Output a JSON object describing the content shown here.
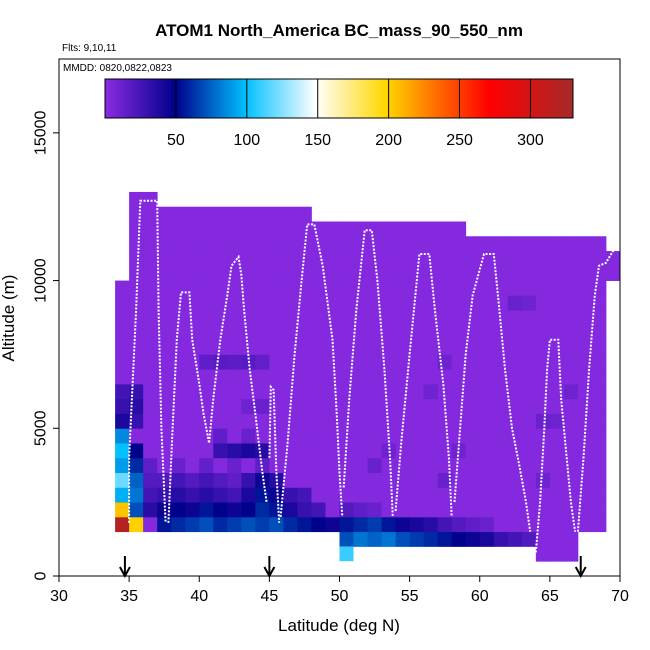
{
  "chart_data": {
    "type": "heatmap",
    "title": "ATOM1 North_America BC_mass_90_550_nm",
    "subtitle_flights": "Flts: 9,10,11",
    "subtitle_dates": "MMDD: 0820,0822,0823",
    "xlabel": "Latitude (deg N)",
    "ylabel": "Altitude (m)",
    "xlim": [
      30,
      70
    ],
    "ylim": [
      0,
      17500
    ],
    "x_ticks": [
      30,
      35,
      40,
      45,
      50,
      55,
      60,
      65,
      70
    ],
    "y_ticks": [
      0,
      5000,
      10000,
      15000
    ],
    "colorbar": {
      "range": [
        0,
        330
      ],
      "ticks": [
        50,
        100,
        150,
        200,
        250,
        300
      ],
      "colors": [
        "#8A2BE2",
        "#00008B",
        "#00BFFF",
        "#FFFFFF",
        "#FFD700",
        "#FF0000",
        "#A52A2A"
      ]
    },
    "grid": {
      "lat_step": 1,
      "alt_step": 500,
      "default_value": 2
    },
    "columns": [
      {
        "lat": 34,
        "alt_top": 10000
      },
      {
        "lat": 35,
        "alt_top": 13000
      },
      {
        "lat": 36,
        "alt_top": 13000
      },
      {
        "lat": 37,
        "alt_top": 12500
      },
      {
        "lat": 38,
        "alt_top": 12500
      },
      {
        "lat": 39,
        "alt_top": 12500
      },
      {
        "lat": 40,
        "alt_top": 12500
      },
      {
        "lat": 41,
        "alt_top": 12500
      },
      {
        "lat": 42,
        "alt_top": 12500
      },
      {
        "lat": 43,
        "alt_top": 12500
      },
      {
        "lat": 44,
        "alt_top": 12500
      },
      {
        "lat": 45,
        "alt_top": 12500
      },
      {
        "lat": 46,
        "alt_top": 12500
      },
      {
        "lat": 47,
        "alt_top": 12500
      },
      {
        "lat": 48,
        "alt_top": 12000
      },
      {
        "lat": 49,
        "alt_top": 12000
      },
      {
        "lat": 50,
        "alt_top": 12000
      },
      {
        "lat": 51,
        "alt_top": 12000
      },
      {
        "lat": 52,
        "alt_top": 12000
      },
      {
        "lat": 53,
        "alt_top": 12000
      },
      {
        "lat": 54,
        "alt_top": 12000
      },
      {
        "lat": 55,
        "alt_top": 12000
      },
      {
        "lat": 56,
        "alt_top": 12000
      },
      {
        "lat": 57,
        "alt_top": 12000
      },
      {
        "lat": 58,
        "alt_top": 12000
      },
      {
        "lat": 59,
        "alt_top": 11500
      },
      {
        "lat": 60,
        "alt_top": 11500
      },
      {
        "lat": 61,
        "alt_top": 11500
      },
      {
        "lat": 62,
        "alt_top": 11500
      },
      {
        "lat": 63,
        "alt_top": 11500
      },
      {
        "lat": 64,
        "alt_top": 11500
      },
      {
        "lat": 65,
        "alt_top": 11500
      },
      {
        "lat": 66,
        "alt_top": 11500
      },
      {
        "lat": 67,
        "alt_top": 11500
      },
      {
        "lat": 68,
        "alt_top": 11500
      },
      {
        "lat": 69,
        "alt_top": 11000
      }
    ],
    "column_bottoms": [
      {
        "lat": 34,
        "alt_bottom": 1500
      },
      {
        "lat": 35,
        "alt_bottom": 1500
      },
      {
        "lat": 36,
        "alt_bottom": 1500
      },
      {
        "lat": 37,
        "alt_bottom": 1500
      },
      {
        "lat": 38,
        "alt_bottom": 1500
      },
      {
        "lat": 39,
        "alt_bottom": 1500
      },
      {
        "lat": 40,
        "alt_bottom": 1500
      },
      {
        "lat": 41,
        "alt_bottom": 1500
      },
      {
        "lat": 42,
        "alt_bottom": 1500
      },
      {
        "lat": 43,
        "alt_bottom": 1500
      },
      {
        "lat": 44,
        "alt_bottom": 1500
      },
      {
        "lat": 45,
        "alt_bottom": 1500
      },
      {
        "lat": 46,
        "alt_bottom": 1500
      },
      {
        "lat": 47,
        "alt_bottom": 1500
      },
      {
        "lat": 48,
        "alt_bottom": 1500
      },
      {
        "lat": 49,
        "alt_bottom": 1500
      },
      {
        "lat": 50,
        "alt_bottom": 1000
      },
      {
        "lat": 51,
        "alt_bottom": 1000
      },
      {
        "lat": 52,
        "alt_bottom": 1000
      },
      {
        "lat": 53,
        "alt_bottom": 1000
      },
      {
        "lat": 54,
        "alt_bottom": 1000
      },
      {
        "lat": 55,
        "alt_bottom": 1000
      },
      {
        "lat": 56,
        "alt_bottom": 1000
      },
      {
        "lat": 57,
        "alt_bottom": 1000
      },
      {
        "lat": 58,
        "alt_bottom": 1000
      },
      {
        "lat": 59,
        "alt_bottom": 1000
      },
      {
        "lat": 60,
        "alt_bottom": 1000
      },
      {
        "lat": 61,
        "alt_bottom": 1000
      },
      {
        "lat": 62,
        "alt_bottom": 1000
      },
      {
        "lat": 63,
        "alt_bottom": 1000
      },
      {
        "lat": 64,
        "alt_bottom": 500
      },
      {
        "lat": 65,
        "alt_bottom": 500
      },
      {
        "lat": 66,
        "alt_bottom": 500
      },
      {
        "lat": 67,
        "alt_bottom": 1500
      },
      {
        "lat": 68,
        "alt_bottom": 1500
      },
      {
        "lat": 69,
        "alt_bottom": 10000
      }
    ],
    "cells": [
      {
        "lat": 34,
        "alt": 1500,
        "v": 320
      },
      {
        "lat": 35,
        "alt": 1500,
        "v": 200
      },
      {
        "lat": 34,
        "alt": 2000,
        "v": 205
      },
      {
        "lat": 34,
        "alt": 2500,
        "v": 95
      },
      {
        "lat": 34,
        "alt": 3000,
        "v": 120
      },
      {
        "lat": 34,
        "alt": 3500,
        "v": 90
      },
      {
        "lat": 34,
        "alt": 4000,
        "v": 100
      },
      {
        "lat": 34,
        "alt": 4500,
        "v": 85
      },
      {
        "lat": 34,
        "alt": 5000,
        "v": 40
      },
      {
        "lat": 34,
        "alt": 5500,
        "v": 30
      },
      {
        "lat": 34,
        "alt": 6000,
        "v": 25
      },
      {
        "lat": 35,
        "alt": 2000,
        "v": 70
      },
      {
        "lat": 35,
        "alt": 2500,
        "v": 80
      },
      {
        "lat": 35,
        "alt": 3000,
        "v": 75
      },
      {
        "lat": 35,
        "alt": 3500,
        "v": 60
      },
      {
        "lat": 35,
        "alt": 4000,
        "v": 50
      },
      {
        "lat": 35,
        "alt": 5000,
        "v": 30
      },
      {
        "lat": 35,
        "alt": 5500,
        "v": 35
      },
      {
        "lat": 35,
        "alt": 6000,
        "v": 30
      },
      {
        "lat": 36,
        "alt": 2000,
        "v": 35
      },
      {
        "lat": 36,
        "alt": 2500,
        "v": 25
      },
      {
        "lat": 36,
        "alt": 3000,
        "v": 20
      },
      {
        "lat": 36,
        "alt": 3500,
        "v": 15
      },
      {
        "lat": 37,
        "alt": 1500,
        "v": 55
      },
      {
        "lat": 38,
        "alt": 1500,
        "v": 60
      },
      {
        "lat": 39,
        "alt": 1500,
        "v": 65
      },
      {
        "lat": 40,
        "alt": 1500,
        "v": 70
      },
      {
        "lat": 41,
        "alt": 1500,
        "v": 60
      },
      {
        "lat": 42,
        "alt": 1500,
        "v": 65
      },
      {
        "lat": 43,
        "alt": 1500,
        "v": 70
      },
      {
        "lat": 44,
        "alt": 1500,
        "v": 65
      },
      {
        "lat": 45,
        "alt": 1500,
        "v": 70
      },
      {
        "lat": 46,
        "alt": 1500,
        "v": 60
      },
      {
        "lat": 47,
        "alt": 1500,
        "v": 55
      },
      {
        "lat": 48,
        "alt": 1500,
        "v": 50
      },
      {
        "lat": 49,
        "alt": 1500,
        "v": 45
      },
      {
        "lat": 37,
        "alt": 2000,
        "v": 45
      },
      {
        "lat": 38,
        "alt": 2000,
        "v": 50
      },
      {
        "lat": 39,
        "alt": 2000,
        "v": 45
      },
      {
        "lat": 40,
        "alt": 2000,
        "v": 55
      },
      {
        "lat": 41,
        "alt": 2000,
        "v": 50
      },
      {
        "lat": 42,
        "alt": 2000,
        "v": 45
      },
      {
        "lat": 43,
        "alt": 2000,
        "v": 50
      },
      {
        "lat": 44,
        "alt": 2000,
        "v": 60
      },
      {
        "lat": 45,
        "alt": 2000,
        "v": 55
      },
      {
        "lat": 46,
        "alt": 2000,
        "v": 40
      },
      {
        "lat": 47,
        "alt": 2000,
        "v": 30
      },
      {
        "lat": 48,
        "alt": 2000,
        "v": 25
      },
      {
        "lat": 37,
        "alt": 2500,
        "v": 30
      },
      {
        "lat": 38,
        "alt": 2500,
        "v": 35
      },
      {
        "lat": 39,
        "alt": 2500,
        "v": 30
      },
      {
        "lat": 40,
        "alt": 2500,
        "v": 35
      },
      {
        "lat": 41,
        "alt": 2500,
        "v": 30
      },
      {
        "lat": 42,
        "alt": 2500,
        "v": 25
      },
      {
        "lat": 43,
        "alt": 2500,
        "v": 40
      },
      {
        "lat": 44,
        "alt": 2500,
        "v": 55
      },
      {
        "lat": 45,
        "alt": 2500,
        "v": 45
      },
      {
        "lat": 46,
        "alt": 2500,
        "v": 30
      },
      {
        "lat": 47,
        "alt": 2500,
        "v": 25
      },
      {
        "lat": 37,
        "alt": 3000,
        "v": 20
      },
      {
        "lat": 38,
        "alt": 3000,
        "v": 25
      },
      {
        "lat": 39,
        "alt": 3000,
        "v": 20
      },
      {
        "lat": 40,
        "alt": 3000,
        "v": 25
      },
      {
        "lat": 41,
        "alt": 3000,
        "v": 20
      },
      {
        "lat": 42,
        "alt": 3000,
        "v": 15
      },
      {
        "lat": 43,
        "alt": 3000,
        "v": 30
      },
      {
        "lat": 44,
        "alt": 3000,
        "v": 45
      },
      {
        "lat": 45,
        "alt": 3000,
        "v": 35
      },
      {
        "lat": 38,
        "alt": 3500,
        "v": 12
      },
      {
        "lat": 40,
        "alt": 3500,
        "v": 14
      },
      {
        "lat": 42,
        "alt": 3500,
        "v": 12
      },
      {
        "lat": 44,
        "alt": 3500,
        "v": 15
      },
      {
        "lat": 41,
        "alt": 4000,
        "v": 30
      },
      {
        "lat": 42,
        "alt": 4000,
        "v": 35
      },
      {
        "lat": 43,
        "alt": 4000,
        "v": 40
      },
      {
        "lat": 44,
        "alt": 4000,
        "v": 35
      },
      {
        "lat": 41,
        "alt": 4500,
        "v": 15
      },
      {
        "lat": 43,
        "alt": 4500,
        "v": 12
      },
      {
        "lat": 43,
        "alt": 5500,
        "v": 10
      },
      {
        "lat": 44,
        "alt": 5500,
        "v": 12
      },
      {
        "lat": 40,
        "alt": 7000,
        "v": 15
      },
      {
        "lat": 41,
        "alt": 7000,
        "v": 18
      },
      {
        "lat": 42,
        "alt": 7000,
        "v": 16
      },
      {
        "lat": 43,
        "alt": 7000,
        "v": 18
      },
      {
        "lat": 44,
        "alt": 7000,
        "v": 14
      },
      {
        "lat": 50,
        "alt": 1000,
        "v": 70
      },
      {
        "lat": 51,
        "alt": 1000,
        "v": 80
      },
      {
        "lat": 52,
        "alt": 1000,
        "v": 75
      },
      {
        "lat": 53,
        "alt": 1000,
        "v": 80
      },
      {
        "lat": 54,
        "alt": 1000,
        "v": 70
      },
      {
        "lat": 55,
        "alt": 1000,
        "v": 65
      },
      {
        "lat": 56,
        "alt": 1000,
        "v": 60
      },
      {
        "lat": 57,
        "alt": 1000,
        "v": 55
      },
      {
        "lat": 58,
        "alt": 1000,
        "v": 50
      },
      {
        "lat": 59,
        "alt": 1000,
        "v": 45
      },
      {
        "lat": 60,
        "alt": 1000,
        "v": 40
      },
      {
        "lat": 61,
        "alt": 1000,
        "v": 30
      },
      {
        "lat": 62,
        "alt": 1000,
        "v": 25
      },
      {
        "lat": 63,
        "alt": 1000,
        "v": 20
      },
      {
        "lat": 50,
        "alt": 1500,
        "v": 55
      },
      {
        "lat": 51,
        "alt": 1500,
        "v": 60
      },
      {
        "lat": 52,
        "alt": 1500,
        "v": 65
      },
      {
        "lat": 53,
        "alt": 1500,
        "v": 55
      },
      {
        "lat": 54,
        "alt": 1500,
        "v": 45
      },
      {
        "lat": 55,
        "alt": 1500,
        "v": 40
      },
      {
        "lat": 56,
        "alt": 1500,
        "v": 35
      },
      {
        "lat": 57,
        "alt": 1500,
        "v": 25
      },
      {
        "lat": 58,
        "alt": 1500,
        "v": 20
      },
      {
        "lat": 59,
        "alt": 1500,
        "v": 15
      },
      {
        "lat": 60,
        "alt": 1500,
        "v": 12
      },
      {
        "lat": 50,
        "alt": 500,
        "v": 110
      },
      {
        "lat": 50,
        "alt": 2000,
        "v": 20
      },
      {
        "lat": 51,
        "alt": 2000,
        "v": 15
      },
      {
        "lat": 52,
        "alt": 2000,
        "v": 12
      },
      {
        "lat": 52,
        "alt": 3500,
        "v": 12
      },
      {
        "lat": 53,
        "alt": 4000,
        "v": 10
      },
      {
        "lat": 57,
        "alt": 3000,
        "v": 12
      },
      {
        "lat": 58,
        "alt": 4000,
        "v": 10
      },
      {
        "lat": 56,
        "alt": 6000,
        "v": 10
      },
      {
        "lat": 57,
        "alt": 7000,
        "v": 10
      },
      {
        "lat": 62,
        "alt": 9000,
        "v": 12
      },
      {
        "lat": 63,
        "alt": 9000,
        "v": 10
      },
      {
        "lat": 64,
        "alt": 3000,
        "v": 10
      },
      {
        "lat": 64,
        "alt": 5000,
        "v": 12
      },
      {
        "lat": 65,
        "alt": 5000,
        "v": 10
      },
      {
        "lat": 66,
        "alt": 6000,
        "v": 10
      }
    ],
    "flight_tracks": [
      [
        [
          35,
          1800
        ],
        [
          35,
          4000
        ],
        [
          35.2,
          6000
        ],
        [
          35.5,
          9000
        ],
        [
          35.8,
          12700
        ],
        [
          37,
          12700
        ],
        [
          37.1,
          9000
        ],
        [
          37.3,
          5000
        ],
        [
          37.6,
          1800
        ]
      ],
      [
        [
          37.8,
          1800
        ],
        [
          38.1,
          5000
        ],
        [
          38.4,
          8000
        ],
        [
          38.7,
          9600
        ],
        [
          39.3,
          9600
        ],
        [
          39.5,
          8000
        ],
        [
          40,
          6500
        ],
        [
          40.3,
          5500
        ],
        [
          40.7,
          4500
        ],
        [
          41,
          6000
        ],
        [
          41.5,
          8000
        ],
        [
          42,
          9500
        ],
        [
          42.3,
          10500
        ],
        [
          42.8,
          10800
        ],
        [
          43,
          10200
        ],
        [
          43.2,
          9000
        ],
        [
          43.6,
          7000
        ],
        [
          44.0,
          5500
        ],
        [
          44.5,
          3500
        ],
        [
          44.8,
          2500
        ]
      ],
      [
        [
          45,
          4000
        ],
        [
          45.1,
          6400
        ],
        [
          45.3,
          6300
        ],
        [
          45.5,
          3500
        ],
        [
          45.7,
          1800
        ]
      ],
      [
        [
          45.8,
          2000
        ],
        [
          46.3,
          4500
        ],
        [
          46.8,
          7500
        ],
        [
          47.3,
          10000
        ],
        [
          47.7,
          11900
        ],
        [
          48.2,
          11900
        ],
        [
          48.8,
          10500
        ],
        [
          49.5,
          8000
        ],
        [
          49.8,
          5500
        ],
        [
          50,
          3500
        ],
        [
          50.2,
          2000
        ]
      ],
      [
        [
          50.3,
          3000
        ],
        [
          50.7,
          6000
        ],
        [
          51.2,
          9000
        ],
        [
          51.8,
          11700
        ],
        [
          52.3,
          11700
        ],
        [
          52.7,
          10000
        ],
        [
          53.2,
          7000
        ],
        [
          53.6,
          4000
        ],
        [
          53.8,
          2000
        ]
      ],
      [
        [
          54,
          2200
        ],
        [
          54.4,
          4500
        ],
        [
          55,
          7500
        ],
        [
          55.7,
          10900
        ],
        [
          56.4,
          10900
        ],
        [
          56.8,
          9000
        ],
        [
          57.4,
          6500
        ],
        [
          57.8,
          4000
        ],
        [
          58,
          2000
        ]
      ],
      [
        [
          58.2,
          2500
        ],
        [
          58.6,
          5000
        ],
        [
          59,
          7500
        ],
        [
          59.5,
          9500
        ],
        [
          60.3,
          10900
        ],
        [
          61.0,
          10900
        ],
        [
          61.4,
          9000
        ],
        [
          61.8,
          7000
        ],
        [
          62.3,
          5000
        ],
        [
          62.8,
          3800
        ],
        [
          63.3,
          2500
        ],
        [
          63.6,
          1500
        ]
      ],
      [
        [
          64,
          800
        ],
        [
          64.3,
          2500
        ],
        [
          64.6,
          5000
        ],
        [
          64.8,
          7000
        ],
        [
          65.0,
          8000
        ],
        [
          65.6,
          8000
        ],
        [
          65.8,
          6000
        ],
        [
          66.2,
          4000
        ],
        [
          66.5,
          2500
        ],
        [
          66.8,
          1500
        ]
      ],
      [
        [
          67,
          1500
        ],
        [
          67.4,
          4000
        ],
        [
          67.8,
          7000
        ],
        [
          68.2,
          9500
        ],
        [
          68.5,
          10500
        ],
        [
          69,
          10600
        ],
        [
          69.5,
          11000
        ],
        [
          70,
          11200
        ]
      ]
    ],
    "arrows_lat": [
      34.7,
      45,
      67.2
    ]
  }
}
